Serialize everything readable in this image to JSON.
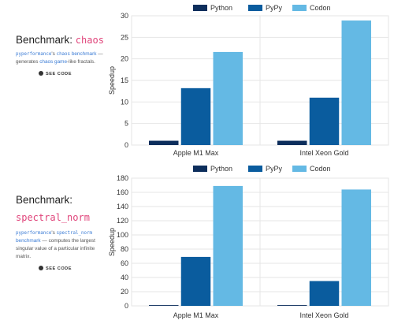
{
  "colors": {
    "python": "#0d2e5c",
    "pypy": "#0a5c9e",
    "codon": "#64b9e4",
    "pink": "#e0457b",
    "link": "#3a7bd5"
  },
  "panels": [
    {
      "title_prefix": "Benchmark:",
      "title_code": "chaos",
      "desc": {
        "code": "pyperformance",
        "t1": "'s ",
        "code2": "chaos",
        "link1": "benchmark",
        "t2": " — generates ",
        "link2": "chaos game",
        "t3": "-like fractals."
      },
      "see_code": "SEE CODE"
    },
    {
      "title_prefix": "Benchmark:",
      "title_code": "spectral_norm",
      "desc": {
        "code": "pyperformance",
        "t1": "'s ",
        "code2": "spectral_norm",
        "link1": "benchmark",
        "t2": " — computes the largest singular value of a particular infinite matrix.",
        "link2": "",
        "t3": ""
      },
      "see_code": "SEE CODE"
    }
  ],
  "chart_data": [
    {
      "type": "bar",
      "title": "",
      "ylabel": "Speedup",
      "categories": [
        "Apple M1 Max",
        "Intel Xeon Gold"
      ],
      "series": [
        {
          "name": "Python",
          "values": [
            1,
            1
          ]
        },
        {
          "name": "PyPy",
          "values": [
            13.2,
            11
          ]
        },
        {
          "name": "Codon",
          "values": [
            21.6,
            28.9
          ]
        }
      ],
      "ylim": [
        0,
        30
      ],
      "yticks": [
        0,
        5,
        10,
        15,
        20,
        25,
        30
      ],
      "legend": "top-center",
      "grid": true
    },
    {
      "type": "bar",
      "title": "",
      "ylabel": "Speedup",
      "categories": [
        "Apple M1 Max",
        "Intel Xeon Gold"
      ],
      "series": [
        {
          "name": "Python",
          "values": [
            1,
            1
          ]
        },
        {
          "name": "PyPy",
          "values": [
            69,
            35
          ]
        },
        {
          "name": "Codon",
          "values": [
            169,
            164
          ]
        }
      ],
      "ylim": [
        0,
        180
      ],
      "yticks": [
        0,
        20,
        40,
        60,
        80,
        100,
        120,
        140,
        160,
        180
      ],
      "legend": "top-center",
      "grid": true
    }
  ]
}
